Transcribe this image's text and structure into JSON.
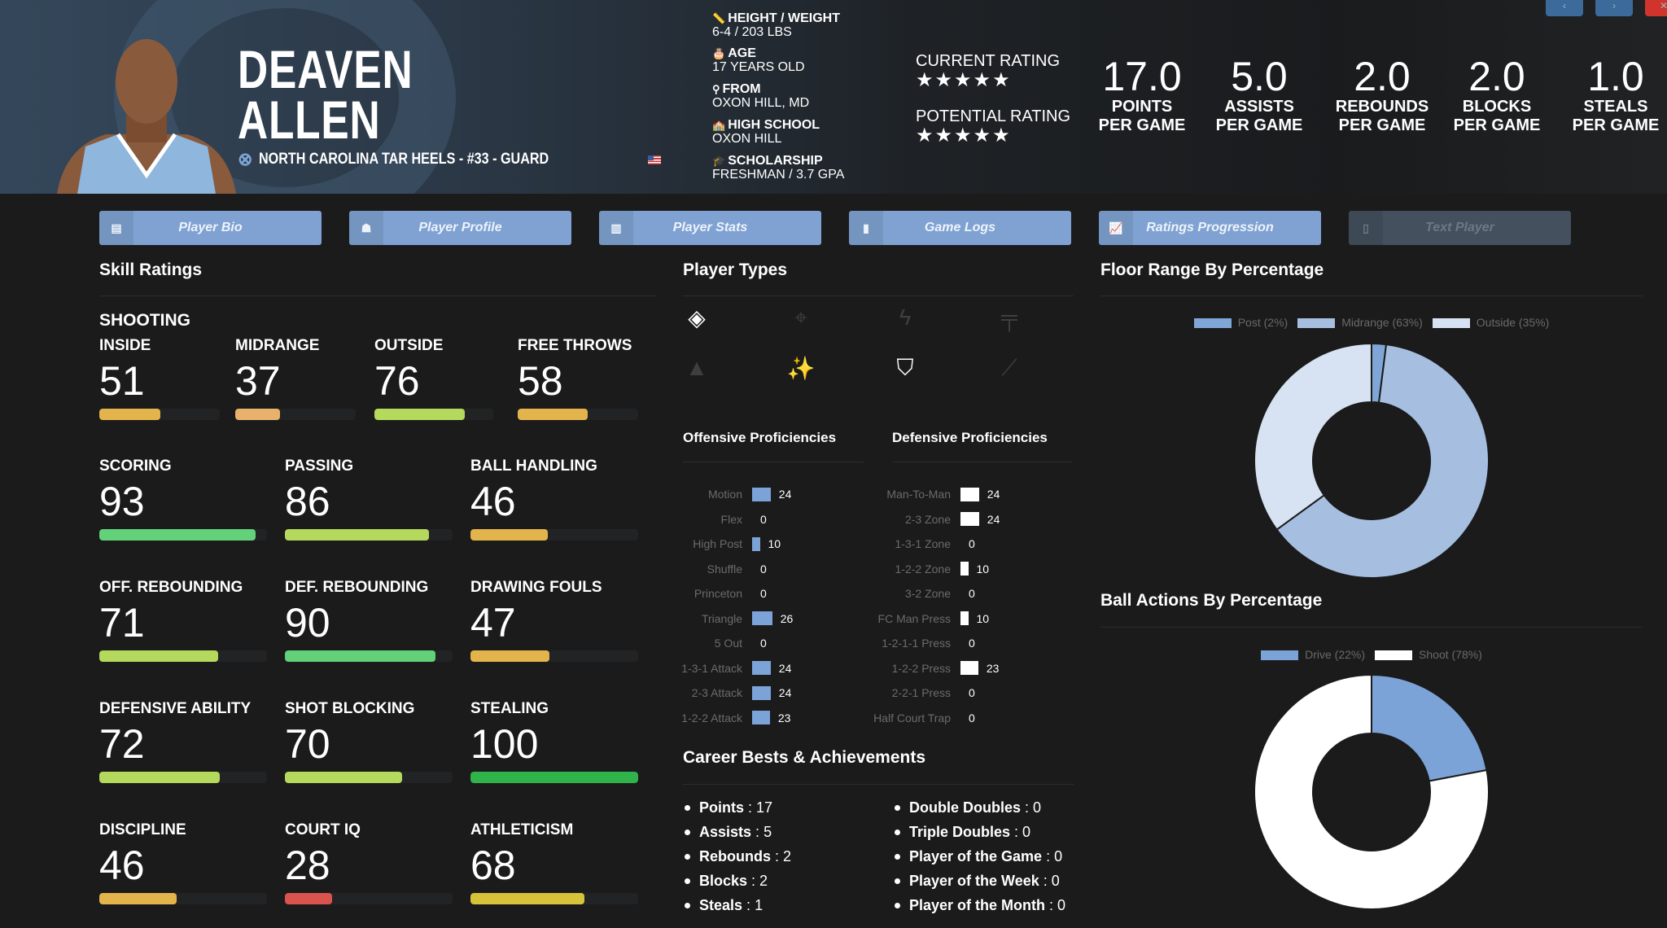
{
  "header": {
    "first_name": "DEAVEN",
    "last_name": "ALLEN",
    "team_line": "NORTH CAROLINA TAR HEELS - #33 - GUARD",
    "info": [
      {
        "icon": "ruler-icon",
        "glyph": "📏",
        "label": "HEIGHT / WEIGHT",
        "value": "6-4 / 203 LBS"
      },
      {
        "icon": "birthday-cake-icon",
        "glyph": "🎂",
        "label": "AGE",
        "value": "17 YEARS OLD"
      },
      {
        "icon": "map-marker-icon",
        "glyph": "⚲",
        "label": "FROM",
        "value": "OXON HILL, MD"
      },
      {
        "icon": "school-icon",
        "glyph": "🏫",
        "label": "HIGH SCHOOL",
        "value": "OXON HILL"
      },
      {
        "icon": "graduation-cap-icon",
        "glyph": "🎓",
        "label": "SCHOLARSHIP",
        "value": "FRESHMAN / 3.7 GPA"
      }
    ],
    "current_rating_label": "CURRENT RATING",
    "current_rating_stars": 5,
    "potential_rating_label": "POTENTIAL RATING",
    "potential_rating_stars": 5,
    "stats": [
      {
        "value": "17.0",
        "label1": "POINTS",
        "label2": "PER GAME"
      },
      {
        "value": "5.0",
        "label1": "ASSISTS",
        "label2": "PER GAME"
      },
      {
        "value": "2.0",
        "label1": "REBOUNDS",
        "label2": "PER GAME"
      },
      {
        "value": "2.0",
        "label1": "BLOCKS",
        "label2": "PER GAME"
      },
      {
        "value": "1.0",
        "label1": "STEALS",
        "label2": "PER GAME"
      }
    ],
    "top_buttons": [
      {
        "name": "previous-button",
        "glyph": "‹",
        "color": "#3c6a9a"
      },
      {
        "name": "next-button",
        "glyph": "›",
        "color": "#3c6a9a"
      },
      {
        "name": "close-button",
        "glyph": "✕",
        "color": "#d0342c"
      }
    ]
  },
  "tabs": [
    {
      "label": "Player Bio",
      "icon": "id-card-icon",
      "glyph": "▤",
      "disabled": false
    },
    {
      "label": "Player Profile",
      "icon": "user-profile-icon",
      "glyph": "☗",
      "disabled": false
    },
    {
      "label": "Player Stats",
      "icon": "bar-chart-icon",
      "glyph": "▥",
      "disabled": false
    },
    {
      "label": "Game Logs",
      "icon": "clipboard-icon",
      "glyph": "▮",
      "disabled": false
    },
    {
      "label": "Ratings Progression",
      "icon": "line-chart-icon",
      "glyph": "📈",
      "disabled": false
    },
    {
      "label": "Text Player",
      "icon": "mobile-phone-icon",
      "glyph": "▯",
      "disabled": true
    }
  ],
  "skills": {
    "title": "Skill Ratings",
    "group_label": "SHOOTING",
    "shooting": [
      {
        "label": "INSIDE",
        "value": 51,
        "color": "#e3b44c"
      },
      {
        "label": "MIDRANGE",
        "value": 37,
        "color": "#e8b26c"
      },
      {
        "label": "OUTSIDE",
        "value": 76,
        "color": "#b4d95c"
      },
      {
        "label": "FREE THROWS",
        "value": 58,
        "color": "#e3b44c"
      }
    ],
    "rows": [
      [
        {
          "label": "SCORING",
          "value": 93,
          "color": "#62d17a"
        },
        {
          "label": "PASSING",
          "value": 86,
          "color": "#b4d95c"
        },
        {
          "label": "BALL HANDLING",
          "value": 46,
          "color": "#e3b44c"
        }
      ],
      [
        {
          "label": "OFF. REBOUNDING",
          "value": 71,
          "color": "#b4d95c"
        },
        {
          "label": "DEF. REBOUNDING",
          "value": 90,
          "color": "#62d17a"
        },
        {
          "label": "DRAWING FOULS",
          "value": 47,
          "color": "#e3b44c"
        }
      ],
      [
        {
          "label": "DEFENSIVE ABILITY",
          "value": 72,
          "color": "#b4d95c"
        },
        {
          "label": "SHOT BLOCKING",
          "value": 70,
          "color": "#b4d95c"
        },
        {
          "label": "STEALING",
          "value": 100,
          "color": "#2fb34a"
        }
      ],
      [
        {
          "label": "DISCIPLINE",
          "value": 46,
          "color": "#e3b44c"
        },
        {
          "label": "COURT IQ",
          "value": 28,
          "color": "#d9534f"
        },
        {
          "label": "ATHLETICISM",
          "value": 68,
          "color": "#d6c33a"
        }
      ]
    ]
  },
  "player_types": {
    "title": "Player Types",
    "icons": [
      {
        "name": "paint-bucket-icon",
        "glyph": "◈",
        "active": true
      },
      {
        "name": "crosshairs-icon",
        "glyph": "⌖",
        "active": false
      },
      {
        "name": "bolt-icon",
        "glyph": "ϟ",
        "active": false
      },
      {
        "name": "paint-roller-icon",
        "glyph": "╤",
        "active": false
      },
      {
        "name": "wizard-hat-icon",
        "glyph": "▲",
        "active": false
      },
      {
        "name": "magic-wand-icon",
        "glyph": "✨",
        "active": true
      },
      {
        "name": "shield-icon",
        "glyph": "⛉",
        "active": true
      },
      {
        "name": "broom-icon",
        "glyph": "⟋",
        "active": false
      }
    ]
  },
  "offensive": {
    "title": "Offensive Proficiencies",
    "color": "#7ba3d8",
    "items": [
      {
        "label": "Motion",
        "value": 24
      },
      {
        "label": "Flex",
        "value": 0
      },
      {
        "label": "High Post",
        "value": 10
      },
      {
        "label": "Shuffle",
        "value": 0
      },
      {
        "label": "Princeton",
        "value": 0
      },
      {
        "label": "Triangle",
        "value": 26
      },
      {
        "label": "5 Out",
        "value": 0
      },
      {
        "label": "1-3-1 Attack",
        "value": 24
      },
      {
        "label": "2-3 Attack",
        "value": 24
      },
      {
        "label": "1-2-2 Attack",
        "value": 23
      }
    ]
  },
  "defensive": {
    "title": "Defensive Proficiencies",
    "color": "#ffffff",
    "items": [
      {
        "label": "Man-To-Man",
        "value": 24
      },
      {
        "label": "2-3 Zone",
        "value": 24
      },
      {
        "label": "1-3-1 Zone",
        "value": 0
      },
      {
        "label": "1-2-2 Zone",
        "value": 10
      },
      {
        "label": "3-2 Zone",
        "value": 0
      },
      {
        "label": "FC Man Press",
        "value": 10
      },
      {
        "label": "1-2-1-1 Press",
        "value": 0
      },
      {
        "label": "1-2-2 Press",
        "value": 23
      },
      {
        "label": "2-2-1 Press",
        "value": 0
      },
      {
        "label": "Half Court Trap",
        "value": 0
      }
    ]
  },
  "career": {
    "title": "Career Bests & Achievements",
    "left": [
      {
        "label": "Points",
        "value": "17"
      },
      {
        "label": "Assists",
        "value": "5"
      },
      {
        "label": "Rebounds",
        "value": "2"
      },
      {
        "label": "Blocks",
        "value": "2"
      },
      {
        "label": "Steals",
        "value": "1"
      }
    ],
    "right": [
      {
        "label": "Double Doubles",
        "value": "0"
      },
      {
        "label": "Triple Doubles",
        "value": "0"
      },
      {
        "label": "Player of the Game",
        "value": "0"
      },
      {
        "label": "Player of the Week",
        "value": "0"
      },
      {
        "label": "Player of the Month",
        "value": "0"
      }
    ]
  },
  "chart_data": [
    {
      "type": "pie",
      "title": "Floor Range By Percentage",
      "legend_position": "top",
      "slices": [
        {
          "label": "Post (2%)",
          "value": 2,
          "color": "#7fa6d6"
        },
        {
          "label": "Midrange (63%)",
          "value": 63,
          "color": "#a6bfe0"
        },
        {
          "label": "Outside (35%)",
          "value": 35,
          "color": "#d7e3f2"
        }
      ]
    },
    {
      "type": "pie",
      "title": "Ball Actions By Percentage",
      "legend_position": "top",
      "slices": [
        {
          "label": "Drive (22%)",
          "value": 22,
          "color": "#7ba3d8"
        },
        {
          "label": "Shoot (78%)",
          "value": 78,
          "color": "#ffffff"
        }
      ]
    }
  ]
}
